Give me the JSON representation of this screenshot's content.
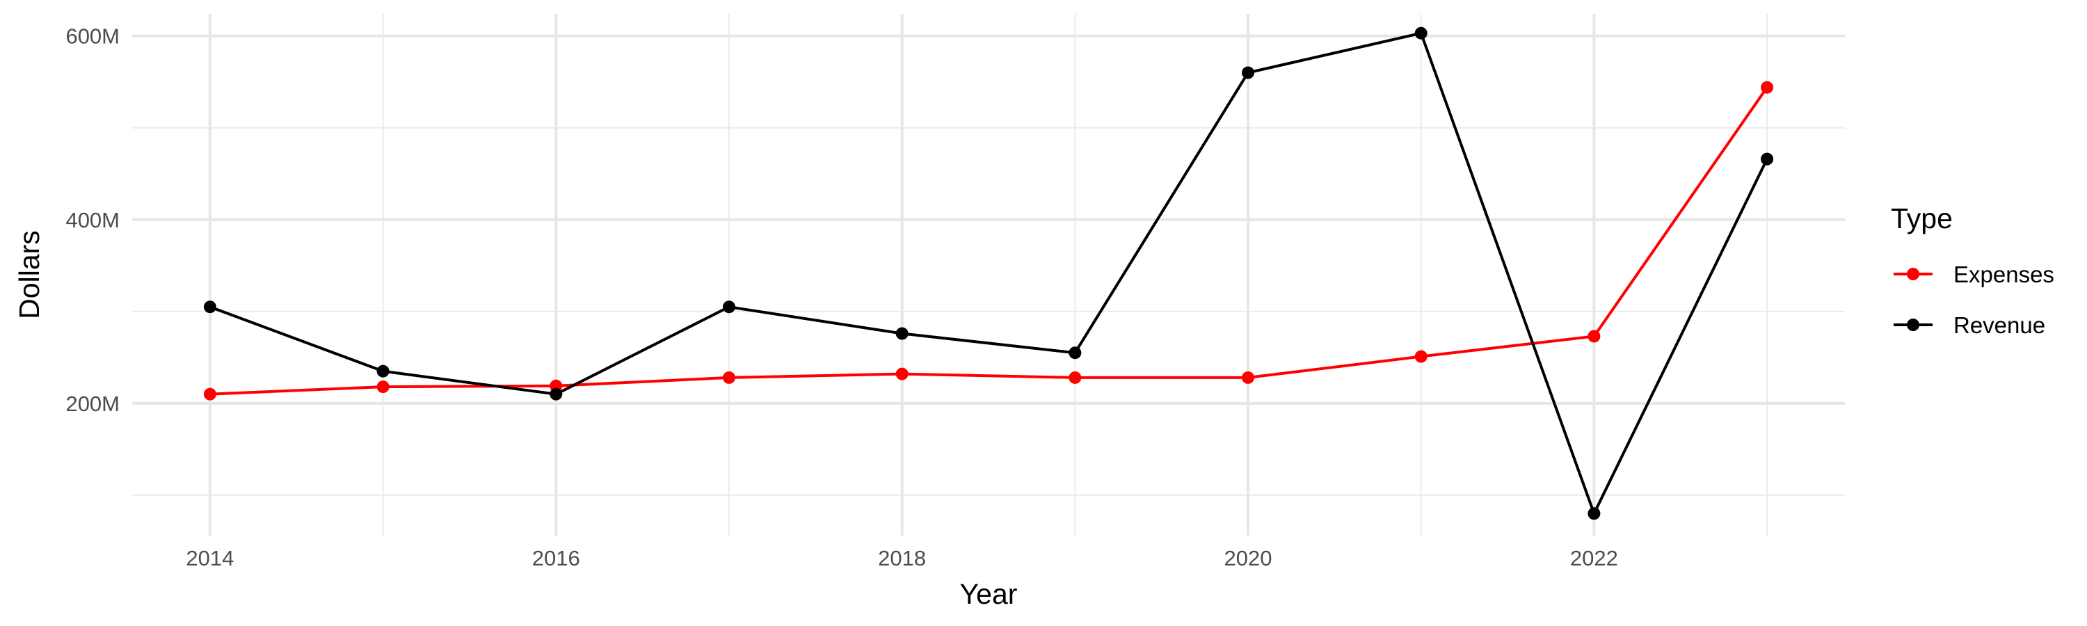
{
  "chart_data": {
    "type": "line",
    "title": "",
    "xlabel": "Year",
    "ylabel": "Dollars",
    "x": [
      2014,
      2015,
      2016,
      2017,
      2018,
      2019,
      2020,
      2021,
      2022,
      2023
    ],
    "xlim": [
      2013.55,
      2023.45
    ],
    "ylim": [
      56,
      624
    ],
    "x_ticks": [
      2014,
      2016,
      2018,
      2020,
      2022
    ],
    "x_tick_labels": [
      "2014",
      "2016",
      "2018",
      "2020",
      "2022"
    ],
    "y_ticks": [
      200,
      400,
      600
    ],
    "y_tick_labels": [
      "200M",
      "400M",
      "600M"
    ],
    "y_minor_ticks": [
      100,
      300,
      500
    ],
    "grid": true,
    "legend": {
      "title": "Type",
      "position": "right"
    },
    "series": [
      {
        "name": "Expenses",
        "color": "#ff0000",
        "values": [
          210,
          218,
          219,
          228,
          232,
          228,
          228,
          251,
          273,
          544
        ]
      },
      {
        "name": "Revenue",
        "color": "#000000",
        "values": [
          305,
          235,
          210,
          305,
          276,
          255,
          560,
          603,
          80,
          466
        ]
      }
    ]
  }
}
